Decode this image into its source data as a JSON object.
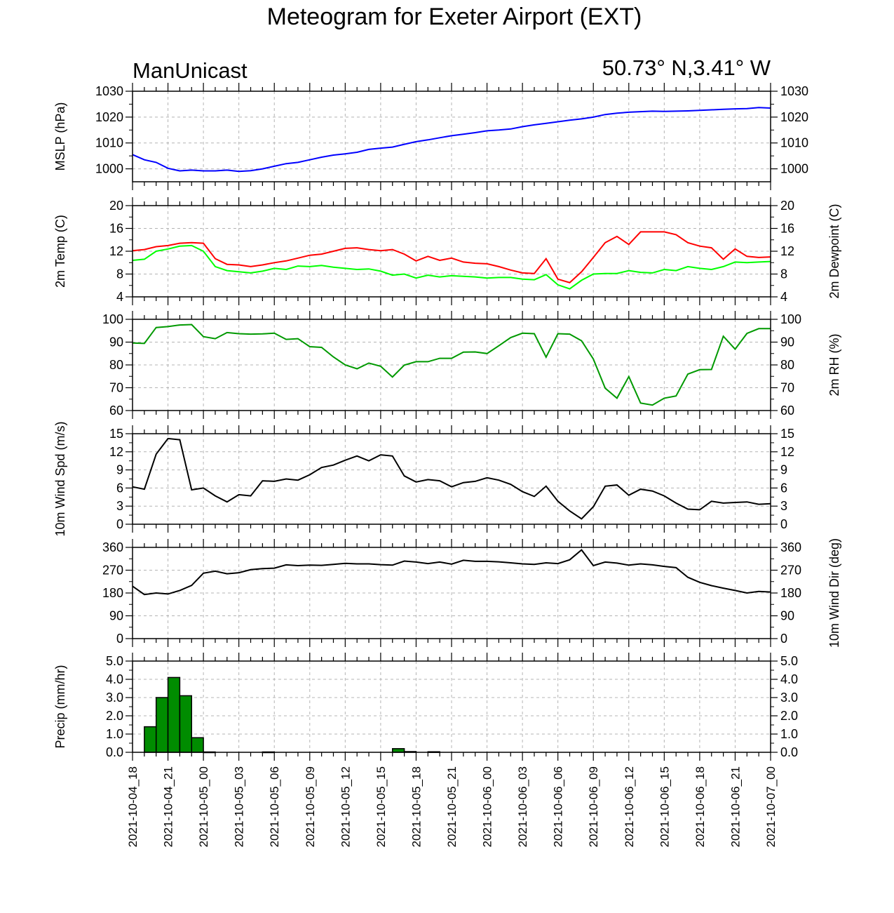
{
  "title": "Meteogram for Exeter Airport (EXT)",
  "station_label": "ManUnicast",
  "coords_label": "50.73° N,3.41° W",
  "x_axis": {
    "start": "2021-10-04_18",
    "end": "2021-10-07_00",
    "tick_labels": [
      "2021-10-04_18",
      "2021-10-04_21",
      "2021-10-05_00",
      "2021-10-05_03",
      "2021-10-05_06",
      "2021-10-05_09",
      "2021-10-05_12",
      "2021-10-05_15",
      "2021-10-05_18",
      "2021-10-05_21",
      "2021-10-06_00",
      "2021-10-06_03",
      "2021-10-06_06",
      "2021-10-06_09",
      "2021-10-06_12",
      "2021-10-06_15",
      "2021-10-06_18",
      "2021-10-06_21",
      "2021-10-07_00"
    ],
    "major_tick_every_hours": 3,
    "minor_tick_every_hours": 1
  },
  "colors": {
    "mslp": "#0000ff",
    "temp": "#ff0000",
    "dewpoint": "#00ff00",
    "rh": "#009900",
    "wind_speed": "#000000",
    "wind_dir": "#000000",
    "precip_fill": "#008c00"
  },
  "chart_data": [
    {
      "type": "line",
      "ylabel": "MSLP (hPa)",
      "ylim": [
        995,
        1030
      ],
      "yticks": [
        "1000",
        "1010",
        "1020",
        "1030"
      ],
      "grid": true,
      "series": [
        {
          "x_hours": [
            0,
            1,
            2,
            3,
            4,
            5,
            6,
            7,
            8,
            9,
            10,
            11,
            12,
            13,
            14,
            15,
            16,
            17,
            18,
            19,
            20,
            21,
            22,
            23,
            24,
            25,
            26,
            27,
            28,
            29,
            30,
            31,
            32,
            33,
            34,
            35,
            36,
            37,
            38,
            39,
            40,
            41,
            42,
            43,
            44,
            45,
            46,
            47,
            48,
            49,
            50,
            51,
            52,
            53,
            54
          ],
          "values": [
            1005.5,
            1003.5,
            1002.5,
            1000.2,
            999.2,
            999.5,
            999.2,
            999.2,
            999.5,
            999.0,
            999.3,
            1000.0,
            1001.0,
            1002.0,
            1002.5,
            1003.5,
            1004.5,
            1005.3,
            1005.8,
            1006.4,
            1007.5,
            1008.0,
            1008.4,
            1009.5,
            1010.5,
            1011.2,
            1012.0,
            1012.8,
            1013.4,
            1014.0,
            1014.7,
            1015.0,
            1015.4,
            1016.3,
            1017.0,
            1017.6,
            1018.2,
            1018.8,
            1019.3,
            1020.0,
            1021.0,
            1021.5,
            1021.9,
            1022.1,
            1022.3,
            1022.2,
            1022.3,
            1022.4,
            1022.6,
            1022.8,
            1023.0,
            1023.2,
            1023.3,
            1023.7,
            1023.5
          ]
        }
      ]
    },
    {
      "type": "line",
      "ylabel": "2m Temp (C)",
      "ylabel_right": "2m Dewpoint (C)",
      "ylim": [
        4,
        20
      ],
      "yticks": [
        "4",
        "8",
        "12",
        "16",
        "20"
      ],
      "grid": true,
      "series": [
        {
          "x_hours": [
            0,
            1,
            2,
            3,
            4,
            5,
            6,
            7,
            8,
            9,
            10,
            11,
            12,
            13,
            14,
            15,
            16,
            17,
            18,
            19,
            20,
            21,
            22,
            23,
            24,
            25,
            26,
            27,
            28,
            29,
            30,
            31,
            32,
            33,
            34,
            35,
            36,
            37,
            38,
            39,
            40,
            41,
            42,
            43,
            44,
            45,
            46,
            47,
            48,
            49,
            50,
            51,
            52,
            53,
            54
          ],
          "values": [
            12.1,
            12.3,
            12.8,
            13.0,
            13.4,
            13.5,
            13.4,
            10.7,
            9.7,
            9.6,
            9.3,
            9.6,
            10.0,
            10.3,
            10.8,
            11.3,
            11.5,
            12.0,
            12.5,
            12.6,
            12.3,
            12.1,
            12.3,
            11.5,
            10.3,
            11.1,
            10.4,
            10.8,
            10.1,
            9.9,
            9.8,
            9.3,
            8.7,
            8.2,
            8.1,
            10.7,
            7.1,
            6.5,
            8.4,
            10.9,
            13.5,
            14.6,
            13.2,
            15.4,
            15.4,
            15.4,
            14.9,
            13.5,
            12.9,
            12.6,
            10.6,
            12.4,
            11.1,
            10.9,
            11.0
          ]
        },
        {
          "x_hours": [
            0,
            1,
            2,
            3,
            4,
            5,
            6,
            7,
            8,
            9,
            10,
            11,
            12,
            13,
            14,
            15,
            16,
            17,
            18,
            19,
            20,
            21,
            22,
            23,
            24,
            25,
            26,
            27,
            28,
            29,
            30,
            31,
            32,
            33,
            34,
            35,
            36,
            37,
            38,
            39,
            40,
            41,
            42,
            43,
            44,
            45,
            46,
            47,
            48,
            49,
            50,
            51,
            52,
            53,
            54
          ],
          "values": [
            10.4,
            10.6,
            12.0,
            12.4,
            12.9,
            13.0,
            12.0,
            9.3,
            8.6,
            8.4,
            8.2,
            8.5,
            9.0,
            8.8,
            9.4,
            9.3,
            9.5,
            9.2,
            9.0,
            8.8,
            8.9,
            8.5,
            7.8,
            8.0,
            7.3,
            7.8,
            7.5,
            7.7,
            7.6,
            7.5,
            7.3,
            7.4,
            7.4,
            7.1,
            7.0,
            7.9,
            6.1,
            5.4,
            6.9,
            8.0,
            8.1,
            8.1,
            8.6,
            8.3,
            8.2,
            8.8,
            8.6,
            9.3,
            9.0,
            8.8,
            9.3,
            10.1,
            10.0,
            10.1,
            10.2
          ]
        }
      ]
    },
    {
      "type": "line",
      "ylabel_right": "2m RH (%)",
      "ylim": [
        60,
        100
      ],
      "yticks": [
        "60",
        "70",
        "80",
        "90",
        "100"
      ],
      "grid": true,
      "series": [
        {
          "x_hours": [
            0,
            1,
            2,
            3,
            4,
            5,
            6,
            7,
            8,
            9,
            10,
            11,
            12,
            13,
            14,
            15,
            16,
            17,
            18,
            19,
            20,
            21,
            22,
            23,
            24,
            25,
            26,
            27,
            28,
            29,
            30,
            31,
            32,
            33,
            34,
            35,
            36,
            37,
            38,
            39,
            40,
            41,
            42,
            43,
            44,
            45,
            46,
            47,
            48,
            49,
            50,
            51,
            52,
            53,
            54
          ],
          "values": [
            89.6,
            89.4,
            96.4,
            96.8,
            97.5,
            97.7,
            92.4,
            91.5,
            94.2,
            93.7,
            93.5,
            93.6,
            93.9,
            91.2,
            91.5,
            88.0,
            87.7,
            83.5,
            80.0,
            78.3,
            80.8,
            79.4,
            74.7,
            79.9,
            81.4,
            81.4,
            82.9,
            82.9,
            85.6,
            85.7,
            85.0,
            88.4,
            92.0,
            93.9,
            93.7,
            83.4,
            93.7,
            93.5,
            90.6,
            82.6,
            69.8,
            65.4,
            74.9,
            63.3,
            62.4,
            65.4,
            66.4,
            76.0,
            77.9,
            78.0,
            92.6,
            86.9,
            93.8,
            95.9,
            95.9
          ]
        }
      ]
    },
    {
      "type": "line",
      "ylabel": "10m Wind Spd (m/s)",
      "ylim": [
        0,
        15
      ],
      "yticks": [
        "0",
        "3",
        "6",
        "9",
        "12",
        "15"
      ],
      "grid": true,
      "series": [
        {
          "x_hours": [
            0,
            1,
            2,
            3,
            4,
            5,
            6,
            7,
            8,
            9,
            10,
            11,
            12,
            13,
            14,
            15,
            16,
            17,
            18,
            19,
            20,
            21,
            22,
            23,
            24,
            25,
            26,
            27,
            28,
            29,
            30,
            31,
            32,
            33,
            34,
            35,
            36,
            37,
            38,
            39,
            40,
            41,
            42,
            43,
            44,
            45,
            46,
            47,
            48,
            49,
            50,
            51,
            52,
            53,
            54
          ],
          "values": [
            6.2,
            5.8,
            11.6,
            14.2,
            14.0,
            5.7,
            6.0,
            4.7,
            3.7,
            4.9,
            4.7,
            7.2,
            7.1,
            7.5,
            7.3,
            8.2,
            9.4,
            9.8,
            10.6,
            11.3,
            10.5,
            11.5,
            11.3,
            8.0,
            7.0,
            7.4,
            7.2,
            6.2,
            6.9,
            7.1,
            7.7,
            7.3,
            6.6,
            5.4,
            4.6,
            6.3,
            3.8,
            2.2,
            0.9,
            2.9,
            6.3,
            6.5,
            4.8,
            5.8,
            5.5,
            4.7,
            3.5,
            2.5,
            2.4,
            3.8,
            3.5,
            3.6,
            3.7,
            3.3,
            3.4
          ]
        }
      ]
    },
    {
      "type": "line",
      "ylabel_right": "10m Wind Dir (deg)",
      "ylim": [
        0,
        360
      ],
      "yticks": [
        "0",
        "90",
        "180",
        "270",
        "360"
      ],
      "grid": true,
      "series": [
        {
          "x_hours": [
            0,
            1,
            2,
            3,
            4,
            5,
            6,
            7,
            8,
            9,
            10,
            11,
            12,
            13,
            14,
            15,
            16,
            17,
            18,
            19,
            20,
            21,
            22,
            23,
            24,
            25,
            26,
            27,
            28,
            29,
            30,
            31,
            32,
            33,
            34,
            35,
            36,
            37,
            38,
            39,
            40,
            41,
            42,
            43,
            44,
            45,
            46,
            47,
            48,
            49,
            50,
            51,
            52,
            53,
            54
          ],
          "values": [
            207,
            174,
            180,
            176,
            190,
            210,
            258,
            266,
            256,
            260,
            272,
            276,
            278,
            291,
            288,
            290,
            289,
            293,
            297,
            295,
            295,
            292,
            290,
            306,
            302,
            296,
            302,
            294,
            309,
            305,
            305,
            303,
            299,
            295,
            293,
            299,
            296,
            311,
            350,
            288,
            302,
            298,
            290,
            295,
            291,
            285,
            280,
            242,
            222,
            209,
            199,
            190,
            180,
            186,
            184
          ]
        }
      ]
    },
    {
      "type": "bar",
      "ylabel": "Precip (mm/hr)",
      "ylim": [
        0,
        5
      ],
      "yticks": [
        "0.0",
        "1.0",
        "2.0",
        "3.0",
        "4.0",
        "5.0"
      ],
      "grid": true,
      "bars": [
        {
          "x_hours": 1.5,
          "value": 1.4
        },
        {
          "x_hours": 2.5,
          "value": 3.0
        },
        {
          "x_hours": 3.5,
          "value": 4.1
        },
        {
          "x_hours": 4.5,
          "value": 3.1
        },
        {
          "x_hours": 5.5,
          "value": 0.8
        },
        {
          "x_hours": 6.5,
          "value": 0.02
        },
        {
          "x_hours": 11.5,
          "value": 0.02
        },
        {
          "x_hours": 22.5,
          "value": 0.2
        },
        {
          "x_hours": 23.5,
          "value": 0.04
        },
        {
          "x_hours": 25.5,
          "value": 0.03
        }
      ]
    }
  ]
}
